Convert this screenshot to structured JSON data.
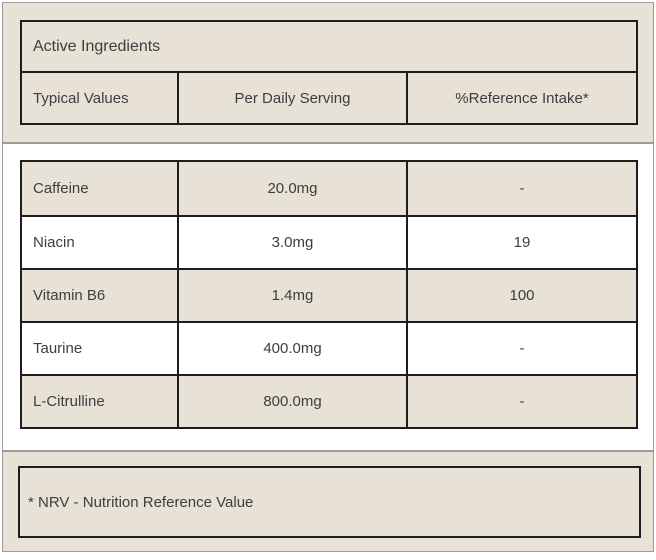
{
  "header": {
    "title": "Active Ingredients",
    "columns": [
      "Typical Values",
      "Per Daily Serving",
      "%Reference Intake*"
    ]
  },
  "ingredients": {
    "rows": [
      {
        "name": "Caffeine",
        "per_daily_serving": "20.0mg",
        "reference_intake": "-"
      },
      {
        "name": "Niacin",
        "per_daily_serving": "3.0mg",
        "reference_intake": "19"
      },
      {
        "name": "Vitamin B6",
        "per_daily_serving": "1.4mg",
        "reference_intake": "100"
      },
      {
        "name": "Taurine",
        "per_daily_serving": "400.0mg",
        "reference_intake": "-"
      },
      {
        "name": "L-Citrulline",
        "per_daily_serving": "800.0mg",
        "reference_intake": "-"
      }
    ]
  },
  "footer": {
    "note": "* NRV - Nutrition Reference Value"
  },
  "colors": {
    "beige": "#e7e1d6",
    "row_white": "#ffffff",
    "panel_border": "#9c9c9c",
    "table_border": "#1d1d1d",
    "text": "#3e3e3e"
  }
}
